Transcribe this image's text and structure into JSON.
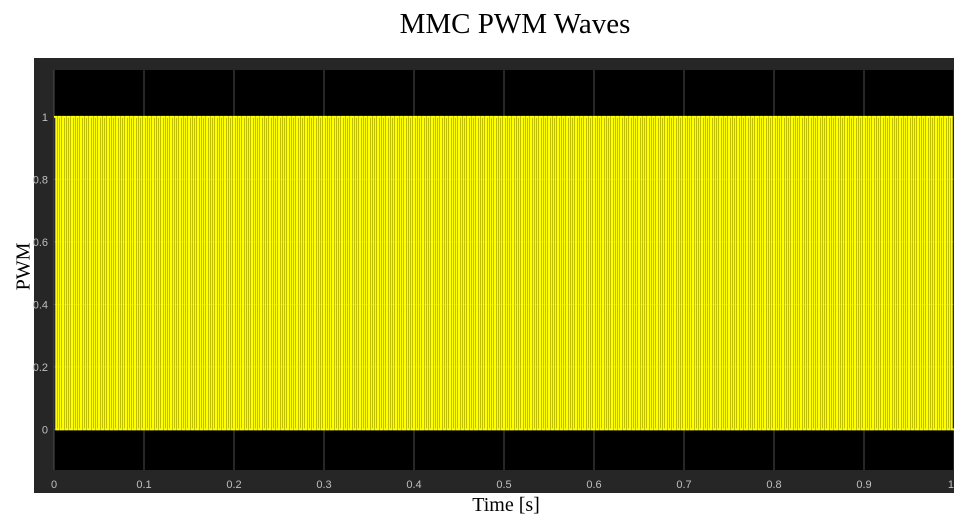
{
  "chart_data": {
    "type": "line",
    "title": "MMC PWM Waves",
    "xlabel": "Time [s]",
    "ylabel": "PWM",
    "xlim": [
      0,
      1
    ],
    "ylim": [
      -0.13,
      1.15
    ],
    "xticks": [
      0,
      0.1,
      0.2,
      0.3,
      0.4,
      0.5,
      0.6,
      0.7,
      0.8,
      0.9,
      1
    ],
    "xtick_labels": [
      "0",
      "0.1",
      "0.2",
      "0.3",
      "0.4",
      "0.5",
      "0.6",
      "0.7",
      "0.8",
      "0.9",
      "1"
    ],
    "yticks": [
      0,
      0.2,
      0.4,
      0.6,
      0.8,
      1
    ],
    "ytick_labels": [
      "0",
      "0.2",
      "0.4",
      "0.6",
      "0.8",
      "1"
    ],
    "grid": true,
    "series": [
      {
        "pulse_frequency_hz": 200,
        "low": 0,
        "high": 1,
        "duty": 0.5,
        "color": "#ffff00"
      }
    ],
    "colors": {
      "plot_background": "#000000",
      "figure_background": "#262626",
      "grid": "#4d4d4d",
      "tick_text": "#bfbfbf",
      "line": "#ffff00"
    }
  }
}
